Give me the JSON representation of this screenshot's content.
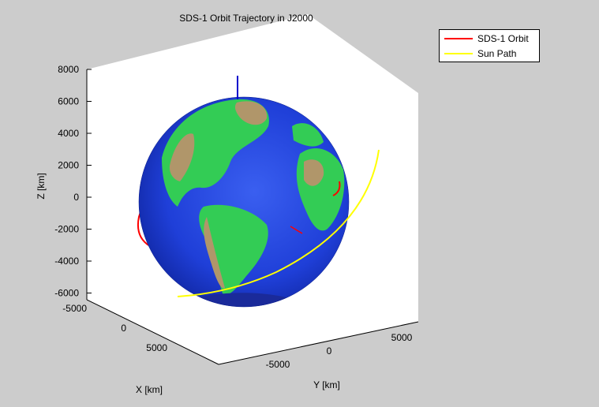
{
  "chart_data": {
    "type": "line",
    "title": "SDS-1 Orbit Trajectory in J2000",
    "xlabel": "X [km]",
    "ylabel": "Y [km]",
    "zlabel": "Z [km]",
    "xlim": [
      -8000,
      8000
    ],
    "ylim": [
      -8000,
      8000
    ],
    "zlim": [
      -7000,
      8000
    ],
    "x_ticks": [
      "-5000",
      "0",
      "5000"
    ],
    "y_ticks": [
      "-5000",
      "0",
      "5000"
    ],
    "z_ticks": [
      "8000",
      "6000",
      "4000",
      "2000",
      "0",
      "-2000",
      "-4000",
      "-6000"
    ],
    "series": [
      {
        "name": "SDS-1 Orbit",
        "color": "#ff0000",
        "shape": "near-circular orbit, radius ~6800 km"
      },
      {
        "name": "Sun Path",
        "color": "#ffff00",
        "shape": "arc outside Earth"
      }
    ],
    "earth_radius_km": 6378,
    "legend_position": "top-right",
    "grid": false,
    "background_color": "#cccccc",
    "axes_color": "#ffffff",
    "ocean_color": "#1a3fd6",
    "land_color": "#33cc55",
    "highland_color": "#b0966a",
    "z_axis_marker_color": "#0000cc"
  }
}
